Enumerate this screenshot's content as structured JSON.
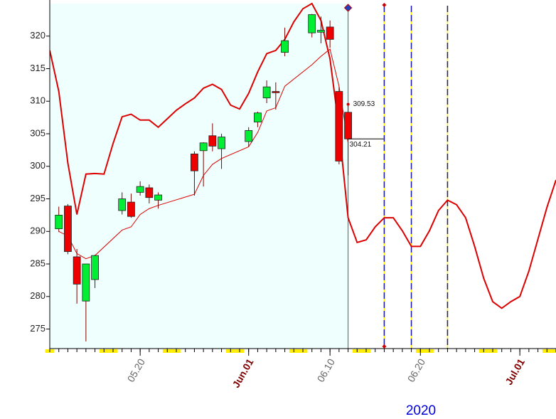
{
  "chart_data": {
    "type": "candlestick",
    "x": [
      "2020-05-11",
      "2020-05-12",
      "2020-05-13",
      "2020-05-14",
      "2020-05-15",
      "2020-05-18",
      "2020-05-19",
      "2020-05-20",
      "2020-05-21",
      "2020-05-22",
      "2020-05-26",
      "2020-05-27",
      "2020-05-28",
      "2020-05-29",
      "2020-06-01",
      "2020-06-02",
      "2020-06-03",
      "2020-06-04",
      "2020-06-05",
      "2020-06-08",
      "2020-06-09",
      "2020-06-10",
      "2020-06-11",
      "2020-06-12"
    ],
    "open": [
      290.4,
      293.9,
      286.1,
      279.3,
      282.6,
      293.2,
      294.5,
      296.0,
      296.7,
      294.8,
      301.9,
      302.4,
      304.7,
      302.7,
      303.8,
      306.8,
      310.5,
      311.5,
      317.5,
      320.5,
      320.6,
      321.4,
      311.5,
      308.3
    ],
    "high": [
      293.8,
      294.2,
      287.3,
      285.0,
      286.4,
      296.0,
      295.8,
      297.7,
      297.2,
      296.0,
      302.3,
      303.7,
      306.6,
      305.0,
      306.0,
      308.4,
      313.2,
      312.9,
      321.3,
      323.4,
      323.0,
      322.4,
      312.2,
      309.53
    ],
    "low": [
      289.9,
      286.5,
      278.9,
      273.1,
      281.3,
      292.6,
      292.1,
      295.5,
      294.3,
      293.5,
      295.5,
      296.9,
      302.3,
      299.6,
      303.0,
      306.0,
      309.7,
      308.7,
      316.9,
      319.8,
      318.9,
      318.2,
      300.3,
      298.6
    ],
    "close": [
      292.5,
      286.9,
      281.9,
      285.0,
      286.3,
      295.0,
      292.3,
      296.9,
      295.2,
      295.6,
      299.3,
      303.6,
      303.1,
      304.5,
      305.5,
      308.2,
      312.2,
      311.3,
      319.3,
      323.3,
      320.9,
      319.5,
      300.8,
      304.21
    ],
    "up_color": "#00ee33",
    "down_color": "#ee0000",
    "lines": [
      {
        "color": "#dd0000",
        "x": [
          "2020-05-10",
          "2020-05-11",
          "2020-05-12",
          "2020-05-13",
          "2020-05-14",
          "2020-05-15",
          "2020-05-16",
          "2020-05-17",
          "2020-05-18",
          "2020-05-19",
          "2020-05-20",
          "2020-05-21",
          "2020-05-22",
          "2020-05-23",
          "2020-05-24",
          "2020-05-25",
          "2020-05-26",
          "2020-05-27",
          "2020-05-28",
          "2020-05-29",
          "2020-05-30",
          "2020-05-31",
          "2020-06-01",
          "2020-06-02",
          "2020-06-03",
          "2020-06-04",
          "2020-06-05",
          "2020-06-06",
          "2020-06-07",
          "2020-06-08",
          "2020-06-09",
          "2020-06-10",
          "2020-06-11",
          "2020-06-12",
          "2020-06-13",
          "2020-06-14",
          "2020-06-15",
          "2020-06-16",
          "2020-06-17",
          "2020-06-18",
          "2020-06-19",
          "2020-06-20",
          "2020-06-21",
          "2020-06-22",
          "2020-06-23",
          "2020-06-24",
          "2020-06-25",
          "2020-06-26",
          "2020-06-27",
          "2020-06-28",
          "2020-06-29",
          "2020-06-30",
          "2020-07-01",
          "2020-07-02",
          "2020-07-03",
          "2020-07-04",
          "2020-07-05"
        ],
        "values": [
          317.8,
          311.5,
          300.5,
          292.6,
          298.8,
          298.9,
          298.8,
          303.5,
          307.6,
          308.0,
          307.1,
          307.1,
          306.0,
          307.3,
          308.6,
          309.6,
          310.5,
          312.0,
          312.6,
          311.8,
          309.4,
          308.8,
          311.2,
          314.5,
          317.3,
          317.8,
          319.5,
          322.2,
          324.2,
          325.0,
          322.4,
          316.5,
          305.8,
          292.1,
          288.3,
          288.7,
          290.7,
          292.1,
          292.1,
          290.1,
          287.7,
          287.7,
          290.1,
          293.2,
          294.8,
          294.1,
          292.1,
          287.7,
          282.8,
          279.2,
          278.2,
          279.2,
          280.0,
          283.9,
          288.8,
          293.7,
          297.9
        ]
      },
      {
        "color": "#dd0000",
        "x": [
          "2020-05-11",
          "2020-05-12",
          "2020-05-13",
          "2020-05-14",
          "2020-05-15",
          "2020-05-18",
          "2020-05-19",
          "2020-05-20",
          "2020-05-21",
          "2020-05-22",
          "2020-05-26",
          "2020-05-27",
          "2020-05-28",
          "2020-05-29",
          "2020-06-01",
          "2020-06-02",
          "2020-06-03",
          "2020-06-04",
          "2020-06-05",
          "2020-06-08",
          "2020-06-09",
          "2020-06-10",
          "2020-06-11",
          "2020-06-12"
        ],
        "values": [
          290.0,
          289.3,
          286.6,
          285.8,
          286.3,
          290.2,
          290.7,
          292.6,
          293.5,
          294.0,
          295.7,
          298.6,
          300.3,
          301.2,
          303.0,
          305.2,
          308.5,
          309.0,
          312.3,
          315.6,
          316.9,
          318.0,
          312.3,
          303.6
        ]
      }
    ],
    "vlines": [
      "2020-06-16",
      "2020-06-19",
      "2020-06-23"
    ],
    "xlim": [
      "2020-05-10",
      "2020-07-05"
    ],
    "xticks": [
      {
        "value": "2020-05-20",
        "label": "05.20"
      },
      {
        "value": "2020-06-01",
        "label": "Jun.01"
      },
      {
        "value": "2020-06-10",
        "label": "06.10"
      },
      {
        "value": "2020-06-20",
        "label": "06.20"
      },
      {
        "value": "2020-07-01",
        "label": "Jul.01"
      }
    ],
    "x_axis_label": "2020",
    "ylim": [
      272,
      325
    ],
    "yticks": [
      275,
      280,
      285,
      290,
      295,
      300,
      305,
      310,
      315,
      320
    ]
  }
}
